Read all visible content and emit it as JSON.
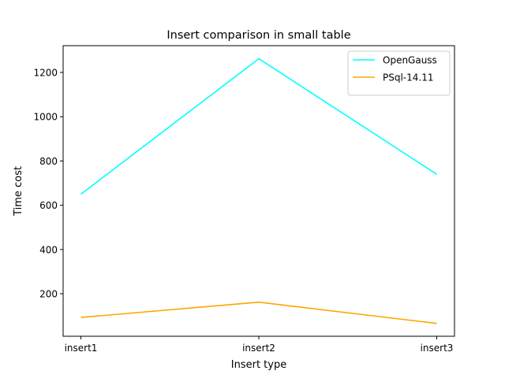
{
  "chart_data": {
    "type": "line",
    "title": "Insert comparison in small table",
    "xlabel": "Insert type",
    "ylabel": "Time cost",
    "categories": [
      "insert1",
      "insert2",
      "insert3"
    ],
    "series": [
      {
        "name": "OpenGauss",
        "values": [
          650,
          1262,
          740
        ],
        "color": "#00ffff"
      },
      {
        "name": "PSql-14.11",
        "values": [
          93,
          162,
          66
        ],
        "color": "#ffa500"
      }
    ],
    "ylim": [
      8,
      1321
    ],
    "yticks": [
      200,
      400,
      600,
      800,
      1000,
      1200
    ],
    "grid": false,
    "legend_position": "upper-right"
  }
}
